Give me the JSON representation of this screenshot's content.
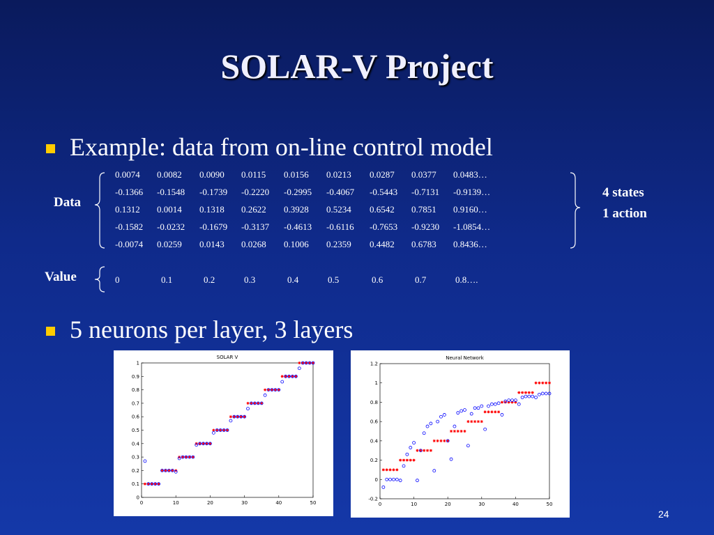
{
  "title": "SOLAR-V Project",
  "bullets": [
    "Example: data from on-line control model",
    "5 neurons per layer, 3 layers"
  ],
  "data_label": "Data",
  "data_rows": [
    [
      "0.0074",
      "0.0082",
      "0.0090",
      "0.0115",
      "0.0156",
      "0.0213",
      "0.0287",
      "0.0377",
      "0.0483…"
    ],
    [
      "-0.1366",
      "-0.1548",
      "-0.1739",
      "-0.2220",
      "-0.2995",
      "-0.4067",
      "-0.5443",
      "-0.7131",
      "-0.9139…"
    ],
    [
      "0.1312",
      "0.0014",
      "0.1318",
      "0.2622",
      "0.3928",
      "0.5234",
      "0.6542",
      "0.7851",
      "0.9160…"
    ],
    [
      "-0.1582",
      "-0.0232",
      "-0.1679",
      "-0.3137",
      "-0.4613",
      "-0.6116",
      "-0.7653",
      "-0.9230",
      "-1.0854…"
    ],
    [
      "-0.0074",
      "0.0259",
      "0.0143",
      "0.0268",
      "0.1006",
      "0.2359",
      "0.4482",
      "0.6783",
      "0.8436…"
    ]
  ],
  "side_labels": [
    "4 states",
    "1 action"
  ],
  "value_label": "Value",
  "value_row": [
    "0",
    "0.1",
    "0.2",
    "0.3",
    "0.4",
    "0.5",
    "0.6",
    "0.7",
    "0.8…."
  ],
  "page_number": "24",
  "chart_data": [
    {
      "type": "scatter",
      "title": "SOLAR V",
      "x": [
        1,
        2,
        3,
        4,
        5,
        6,
        7,
        8,
        9,
        10,
        11,
        12,
        13,
        14,
        15,
        16,
        17,
        18,
        19,
        20,
        21,
        22,
        23,
        24,
        25,
        26,
        27,
        28,
        29,
        30,
        31,
        32,
        33,
        34,
        35,
        36,
        37,
        38,
        39,
        40,
        41,
        42,
        43,
        44,
        45,
        46,
        47,
        48,
        49,
        50
      ],
      "xlim": [
        0,
        50
      ],
      "xticks": [
        0,
        10,
        20,
        30,
        40,
        50
      ],
      "ylim": [
        0,
        1
      ],
      "yticks": [
        0,
        0.1,
        0.2,
        0.3,
        0.4,
        0.5,
        0.6,
        0.7,
        0.8,
        0.9,
        1
      ],
      "series": [
        {
          "color": "#ff0000",
          "marker": "star",
          "values": [
            0.1,
            0.1,
            0.1,
            0.1,
            0.1,
            0.2,
            0.2,
            0.2,
            0.2,
            0.2,
            0.3,
            0.3,
            0.3,
            0.3,
            0.3,
            0.4,
            0.4,
            0.4,
            0.4,
            0.4,
            0.5,
            0.5,
            0.5,
            0.5,
            0.5,
            0.6,
            0.6,
            0.6,
            0.6,
            0.6,
            0.7,
            0.7,
            0.7,
            0.7,
            0.7,
            0.8,
            0.8,
            0.8,
            0.8,
            0.8,
            0.9,
            0.9,
            0.9,
            0.9,
            0.9,
            1,
            1,
            1,
            1,
            1
          ]
        },
        {
          "color": "#0000ff",
          "marker": "circle",
          "values": [
            0.27,
            0.1,
            0.1,
            0.1,
            0.1,
            0.2,
            0.2,
            0.2,
            0.2,
            0.19,
            0.29,
            0.3,
            0.3,
            0.3,
            0.3,
            0.39,
            0.4,
            0.4,
            0.4,
            0.4,
            0.48,
            0.5,
            0.5,
            0.5,
            0.5,
            0.57,
            0.6,
            0.6,
            0.6,
            0.6,
            0.66,
            0.7,
            0.7,
            0.7,
            0.7,
            0.76,
            0.8,
            0.8,
            0.8,
            0.8,
            0.86,
            0.9,
            0.9,
            0.9,
            0.9,
            0.96,
            1,
            1,
            1,
            1
          ]
        }
      ]
    },
    {
      "type": "scatter",
      "title": "Neural Network",
      "x": [
        1,
        2,
        3,
        4,
        5,
        6,
        7,
        8,
        9,
        10,
        11,
        12,
        13,
        14,
        15,
        16,
        17,
        18,
        19,
        20,
        21,
        22,
        23,
        24,
        25,
        26,
        27,
        28,
        29,
        30,
        31,
        32,
        33,
        34,
        35,
        36,
        37,
        38,
        39,
        40,
        41,
        42,
        43,
        44,
        45,
        46,
        47,
        48,
        49,
        50
      ],
      "xlim": [
        0,
        50
      ],
      "xticks": [
        0,
        10,
        20,
        30,
        40,
        50
      ],
      "ylim": [
        -0.2,
        1.2
      ],
      "yticks": [
        -0.2,
        0,
        0.2,
        0.4,
        0.6,
        0.8,
        1,
        1.2
      ],
      "series": [
        {
          "color": "#ff0000",
          "marker": "star",
          "values": [
            0.1,
            0.1,
            0.1,
            0.1,
            0.1,
            0.2,
            0.2,
            0.2,
            0.2,
            0.2,
            0.3,
            0.3,
            0.3,
            0.3,
            0.3,
            0.4,
            0.4,
            0.4,
            0.4,
            0.4,
            0.5,
            0.5,
            0.5,
            0.5,
            0.5,
            0.6,
            0.6,
            0.6,
            0.6,
            0.6,
            0.7,
            0.7,
            0.7,
            0.7,
            0.7,
            0.8,
            0.8,
            0.8,
            0.8,
            0.8,
            0.9,
            0.9,
            0.9,
            0.9,
            0.9,
            1,
            1,
            1,
            1,
            1
          ]
        },
        {
          "color": "#0000ff",
          "marker": "circle",
          "values": [
            -0.08,
            0,
            0,
            0,
            0,
            -0.01,
            0.14,
            0.26,
            0.33,
            0.38,
            -0.01,
            0.3,
            0.48,
            0.55,
            0.58,
            0.09,
            0.6,
            0.65,
            0.67,
            0.4,
            0.21,
            0.55,
            0.69,
            0.71,
            0.72,
            0.35,
            0.68,
            0.74,
            0.74,
            0.76,
            0.52,
            0.76,
            0.78,
            0.78,
            0.79,
            0.67,
            0.81,
            0.82,
            0.82,
            0.82,
            0.78,
            0.85,
            0.86,
            0.86,
            0.86,
            0.85,
            0.88,
            0.89,
            0.89,
            0.89
          ]
        }
      ]
    }
  ]
}
